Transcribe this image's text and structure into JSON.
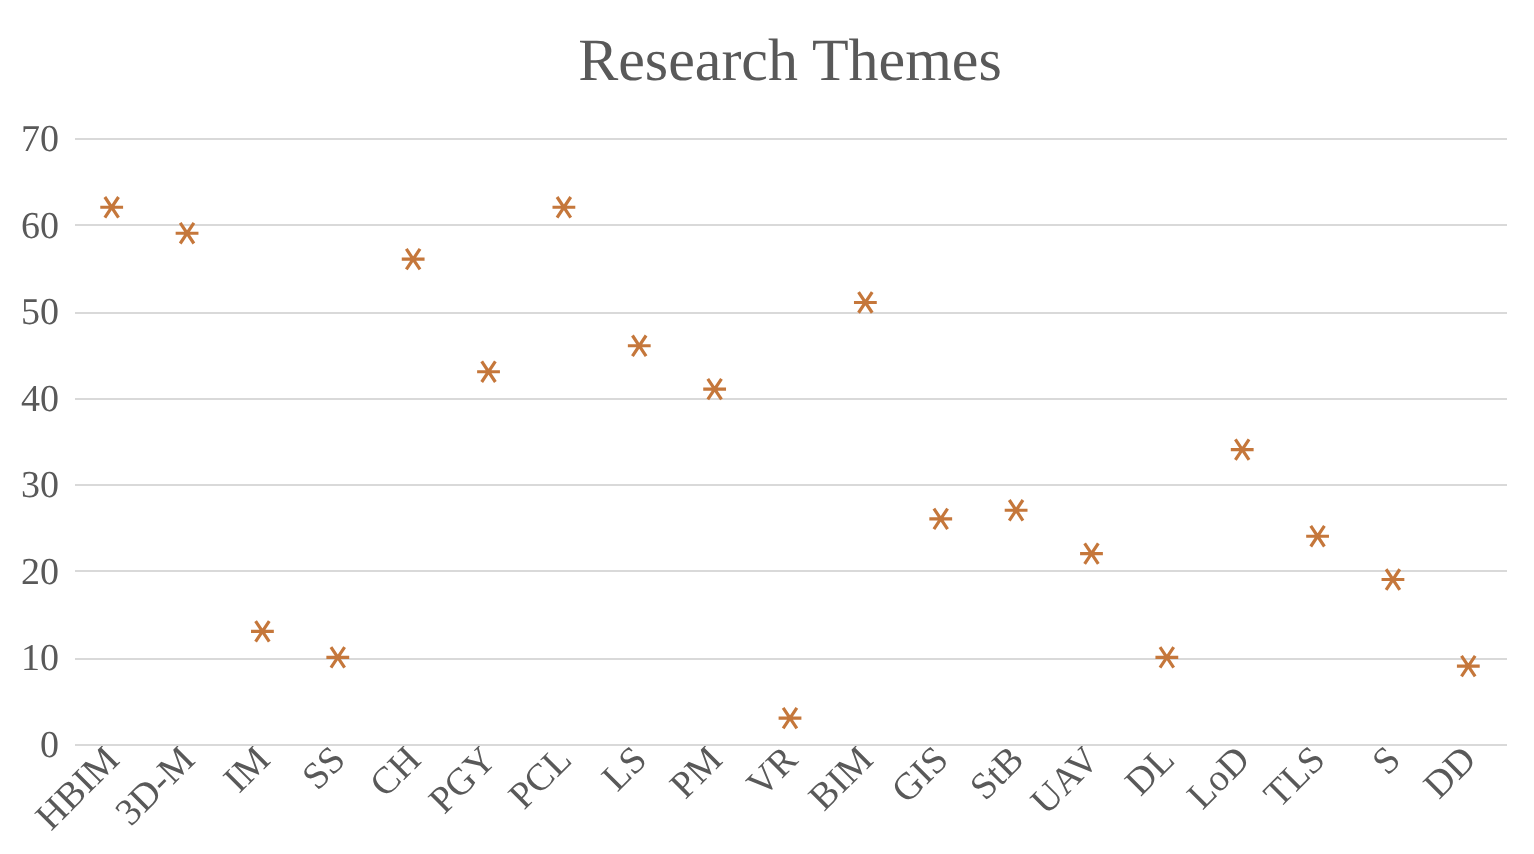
{
  "chart_data": {
    "type": "scatter",
    "title": "Research Themes",
    "categories": [
      "HBIM",
      "3D-M",
      "IM",
      "SS",
      "CH",
      "PGY",
      "PCL",
      "LS",
      "PM",
      "VR",
      "BIM",
      "GIS",
      "StB",
      "UAV",
      "DL",
      "LoD",
      "TLS",
      "S",
      "DD"
    ],
    "series": [
      {
        "color": "#c5773b",
        "values": [
          62,
          59,
          13,
          10,
          56,
          43,
          62,
          46,
          41,
          3,
          51,
          26,
          27,
          22,
          10,
          34,
          24,
          19,
          9
        ]
      }
    ],
    "ylim": [
      0,
      70
    ],
    "yticks": [
      0,
      10,
      20,
      30,
      40,
      50,
      60,
      70
    ],
    "grid": "y",
    "marker": "cross"
  }
}
